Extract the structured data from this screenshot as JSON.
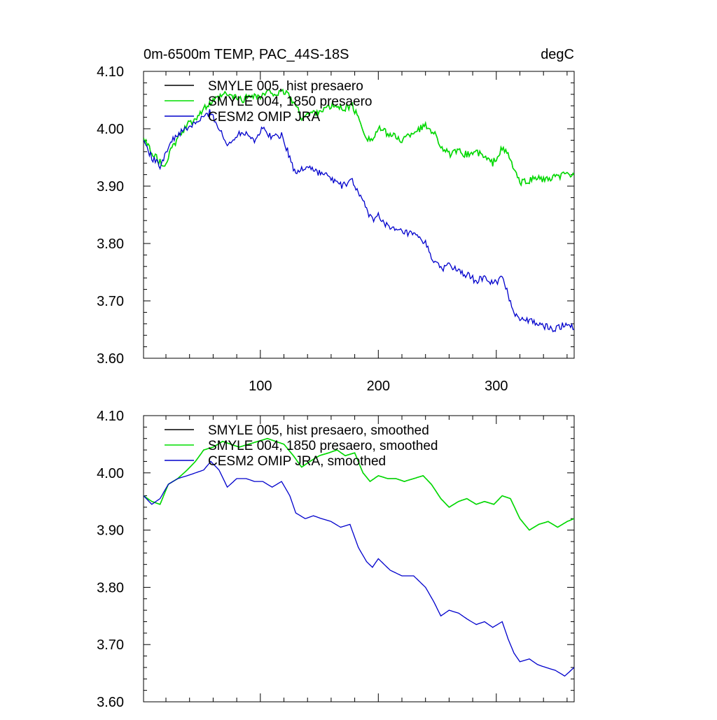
{
  "chart_data": [
    {
      "type": "line",
      "title": "0m-6500m TEMP, PAC_44S-18S",
      "units": "degC",
      "xlim": [
        1,
        366
      ],
      "ylim": [
        3.6,
        4.1
      ],
      "yticks": [
        "3.60",
        "3.70",
        "3.80",
        "3.90",
        "4.00",
        "4.10"
      ],
      "xticks": [
        "100",
        "200",
        "300"
      ],
      "grid": false,
      "legend": "top-left",
      "series": [
        {
          "name": "SMYLE 005, hist presaero",
          "color": "#000000",
          "x": [
            1,
            10,
            18,
            25,
            32,
            40,
            48,
            55,
            62,
            70,
            78,
            85,
            92,
            100,
            108,
            115,
            122,
            130,
            135,
            140,
            148,
            155,
            162,
            170,
            178,
            185,
            190,
            195,
            200,
            210,
            220,
            230,
            240,
            247,
            253,
            260,
            268,
            275,
            283,
            290,
            297,
            305,
            310,
            315,
            320,
            328,
            335,
            342,
            350,
            358,
            366
          ],
          "values": [
            3.98,
            3.955,
            3.935,
            3.965,
            3.99,
            4.01,
            4.025,
            4.04,
            4.05,
            4.06,
            4.055,
            4.05,
            4.06,
            4.055,
            4.065,
            4.06,
            4.065,
            4.04,
            4.02,
            4.025,
            4.03,
            4.035,
            4.04,
            4.035,
            4.04,
            4.01,
            3.985,
            3.98,
            4.0,
            3.99,
            3.98,
            3.995,
            4.005,
            3.995,
            3.97,
            3.955,
            3.96,
            3.955,
            3.96,
            3.95,
            3.94,
            3.965,
            3.955,
            3.93,
            3.905,
            3.91,
            3.915,
            3.91,
            3.915,
            3.92,
            3.92
          ]
        },
        {
          "name": "SMYLE 004, 1850 presaero",
          "color": "#00dd00",
          "x": [
            1,
            10,
            18,
            25,
            32,
            40,
            48,
            55,
            62,
            70,
            78,
            85,
            92,
            100,
            108,
            115,
            122,
            130,
            135,
            140,
            148,
            155,
            162,
            170,
            178,
            185,
            190,
            195,
            200,
            210,
            220,
            230,
            240,
            247,
            253,
            260,
            268,
            275,
            283,
            290,
            297,
            305,
            310,
            315,
            320,
            328,
            335,
            342,
            350,
            358,
            366
          ],
          "values": [
            3.98,
            3.955,
            3.935,
            3.965,
            3.99,
            4.01,
            4.025,
            4.04,
            4.05,
            4.06,
            4.055,
            4.05,
            4.06,
            4.055,
            4.065,
            4.06,
            4.065,
            4.04,
            4.02,
            4.025,
            4.03,
            4.035,
            4.04,
            4.035,
            4.04,
            4.01,
            3.985,
            3.98,
            4.0,
            3.99,
            3.98,
            3.995,
            4.005,
            3.995,
            3.97,
            3.955,
            3.96,
            3.955,
            3.96,
            3.95,
            3.94,
            3.965,
            3.955,
            3.93,
            3.905,
            3.91,
            3.915,
            3.91,
            3.915,
            3.92,
            3.92
          ]
        },
        {
          "name": "CESM2 OMIP JRA",
          "color": "#0000cc",
          "x": [
            1,
            8,
            15,
            22,
            30,
            38,
            45,
            52,
            58,
            65,
            72,
            80,
            88,
            95,
            102,
            110,
            118,
            125,
            130,
            135,
            140,
            148,
            155,
            162,
            170,
            178,
            185,
            190,
            195,
            200,
            210,
            220,
            230,
            240,
            247,
            253,
            260,
            268,
            275,
            283,
            290,
            297,
            305,
            310,
            315,
            320,
            328,
            335,
            342,
            350,
            358,
            366
          ],
          "values": [
            3.98,
            3.95,
            3.935,
            3.97,
            3.99,
            4.0,
            4.01,
            4.02,
            4.03,
            4.0,
            3.97,
            3.99,
            3.995,
            3.98,
            4.0,
            3.985,
            3.99,
            3.95,
            3.92,
            3.93,
            3.935,
            3.925,
            3.92,
            3.91,
            3.9,
            3.91,
            3.88,
            3.86,
            3.84,
            3.85,
            3.825,
            3.82,
            3.815,
            3.8,
            3.77,
            3.755,
            3.765,
            3.75,
            3.745,
            3.735,
            3.74,
            3.73,
            3.74,
            3.71,
            3.68,
            3.67,
            3.665,
            3.66,
            3.655,
            3.65,
            3.66,
            3.655
          ]
        }
      ]
    },
    {
      "type": "line",
      "title": "",
      "xlim": [
        1,
        366
      ],
      "ylim": [
        3.6,
        4.1
      ],
      "yticks": [
        "3.60",
        "3.70",
        "3.80",
        "3.90",
        "4.00",
        "4.10"
      ],
      "grid": false,
      "legend": "top-left",
      "series": [
        {
          "name": "SMYLE 005, hist presaero, smoothed",
          "color": "#000000",
          "x": [
            1,
            8,
            15,
            22,
            30,
            38,
            45,
            52,
            60,
            68,
            75,
            82,
            90,
            98,
            106,
            113,
            120,
            128,
            135,
            142,
            150,
            158,
            165,
            172,
            180,
            187,
            193,
            200,
            208,
            215,
            222,
            230,
            238,
            245,
            253,
            260,
            268,
            275,
            283,
            290,
            298,
            305,
            312,
            320,
            328,
            336,
            344,
            352,
            360,
            366
          ],
          "values": [
            3.96,
            3.95,
            3.945,
            3.98,
            3.99,
            4.005,
            4.02,
            4.04,
            4.045,
            4.055,
            4.05,
            4.045,
            4.05,
            4.055,
            4.06,
            4.055,
            4.05,
            4.03,
            4.01,
            4.02,
            4.03,
            4.035,
            4.04,
            4.03,
            4.035,
            4.0,
            3.985,
            3.995,
            3.99,
            3.99,
            3.985,
            3.99,
            3.995,
            3.98,
            3.955,
            3.94,
            3.95,
            3.955,
            3.945,
            3.95,
            3.945,
            3.96,
            3.955,
            3.92,
            3.9,
            3.91,
            3.915,
            3.905,
            3.915,
            3.92
          ]
        },
        {
          "name": "SMYLE 004, 1850 presaero, smoothed",
          "color": "#00dd00",
          "x": [
            1,
            8,
            15,
            22,
            30,
            38,
            45,
            52,
            60,
            68,
            75,
            82,
            90,
            98,
            106,
            113,
            120,
            128,
            135,
            142,
            150,
            158,
            165,
            172,
            180,
            187,
            193,
            200,
            208,
            215,
            222,
            230,
            238,
            245,
            253,
            260,
            268,
            275,
            283,
            290,
            298,
            305,
            312,
            320,
            328,
            336,
            344,
            352,
            360,
            366
          ],
          "values": [
            3.96,
            3.95,
            3.945,
            3.98,
            3.99,
            4.005,
            4.02,
            4.04,
            4.045,
            4.055,
            4.05,
            4.045,
            4.05,
            4.055,
            4.06,
            4.055,
            4.05,
            4.03,
            4.01,
            4.02,
            4.03,
            4.035,
            4.04,
            4.03,
            4.035,
            4.0,
            3.985,
            3.995,
            3.99,
            3.99,
            3.985,
            3.99,
            3.995,
            3.98,
            3.955,
            3.94,
            3.95,
            3.955,
            3.945,
            3.95,
            3.945,
            3.96,
            3.955,
            3.92,
            3.9,
            3.91,
            3.915,
            3.905,
            3.915,
            3.92
          ]
        },
        {
          "name": "CESM2 OMIP JRA, smoothed",
          "color": "#0000cc",
          "x": [
            1,
            8,
            15,
            22,
            30,
            38,
            45,
            52,
            58,
            65,
            72,
            80,
            88,
            95,
            102,
            110,
            118,
            125,
            130,
            138,
            145,
            152,
            160,
            168,
            176,
            183,
            190,
            195,
            200,
            210,
            220,
            230,
            240,
            247,
            253,
            260,
            268,
            275,
            283,
            290,
            297,
            305,
            310,
            315,
            320,
            328,
            335,
            342,
            350,
            358,
            366
          ],
          "values": [
            3.96,
            3.945,
            3.955,
            3.98,
            3.99,
            3.995,
            4.0,
            4.005,
            4.02,
            4.005,
            3.975,
            3.99,
            3.99,
            3.985,
            3.985,
            3.975,
            3.985,
            3.96,
            3.93,
            3.92,
            3.925,
            3.92,
            3.915,
            3.905,
            3.91,
            3.87,
            3.845,
            3.835,
            3.85,
            3.83,
            3.82,
            3.82,
            3.8,
            3.775,
            3.75,
            3.76,
            3.755,
            3.745,
            3.735,
            3.74,
            3.73,
            3.74,
            3.71,
            3.685,
            3.67,
            3.675,
            3.665,
            3.66,
            3.655,
            3.645,
            3.66
          ]
        }
      ]
    }
  ]
}
